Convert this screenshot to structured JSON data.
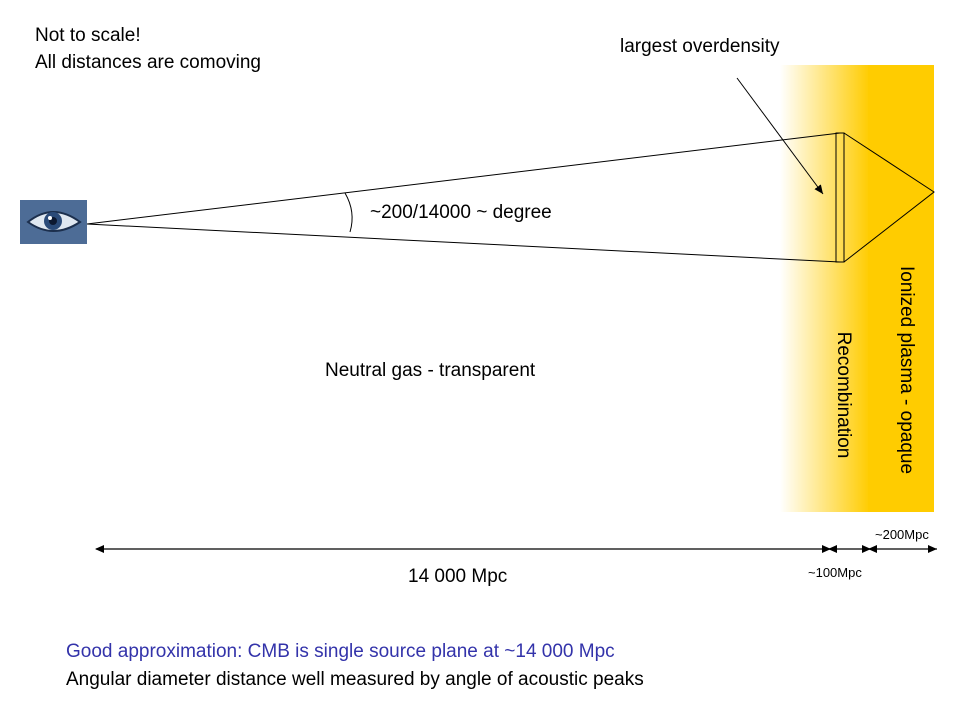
{
  "note": {
    "line1": "Not to scale!",
    "line2": "All distances are comoving"
  },
  "labels": {
    "overdensity": "largest overdensity",
    "angle": "~200/14000 ~ degree",
    "neutral": "Neutral gas - transparent",
    "plasma": "Ionized plasma - opaque",
    "recombination": "Recombination"
  },
  "distances": {
    "main": "14 000 Mpc",
    "recombination_width": "~100Mpc",
    "overdensity_size": "~200Mpc"
  },
  "footer": {
    "line1": "Good approximation: CMB is single source plane at ~14 000 Mpc",
    "line2": "Angular diameter distance well measured by angle of acoustic peaks"
  },
  "colors": {
    "plasma": "#ffcc00",
    "footer_accent": "#3333aa",
    "eye_bg": "#3b5a86"
  },
  "icons": {
    "observer": "eye-icon"
  }
}
